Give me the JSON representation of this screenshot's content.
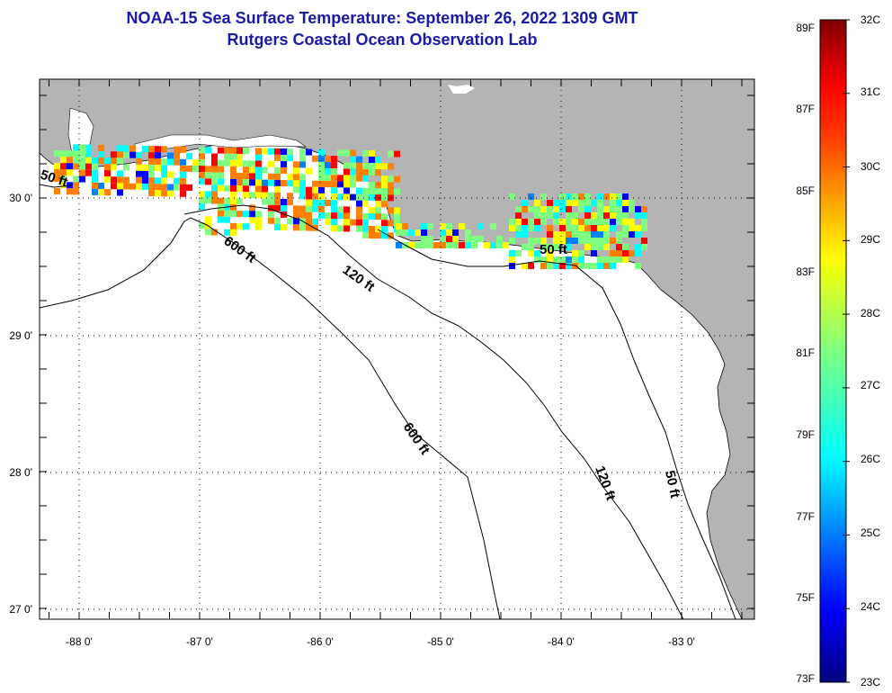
{
  "header": {
    "title_line1": "NOAA-15 Sea Surface Temperature:  September 26, 2022 1309 GMT",
    "title_line2": "Rutgers Coastal Ocean Observation Lab"
  },
  "map": {
    "lon_range": [
      -88.33,
      -82.42
    ],
    "lat_range": [
      26.96,
      30.86
    ],
    "lon_ticks": [
      {
        "value": -88,
        "label": "-88 0'"
      },
      {
        "value": -87,
        "label": "-87 0'"
      },
      {
        "value": -86,
        "label": "-86 0'"
      },
      {
        "value": -85,
        "label": "-85 0'"
      },
      {
        "value": -84,
        "label": "-84 0'"
      },
      {
        "value": -83,
        "label": "-83 0'"
      }
    ],
    "lat_ticks": [
      {
        "value": 30,
        "label": "30 0'"
      },
      {
        "value": 29,
        "label": "29 0'"
      },
      {
        "value": 28,
        "label": "28 0'"
      },
      {
        "value": 27,
        "label": "27 0'"
      }
    ],
    "contour_labels": [
      "50 ft",
      "600 ft",
      "120 ft",
      "50 ft",
      "600 ft",
      "120 ft",
      "50 ft"
    ],
    "colors": {
      "land": "#b4b4b4",
      "ocean": "#ffffff",
      "frame": "#000000",
      "grid": "#000000"
    }
  },
  "colorbar": {
    "fahrenheit": [
      "89F",
      "87F",
      "85F",
      "83F",
      "81F",
      "79F",
      "77F",
      "75F",
      "73F"
    ],
    "celsius": [
      "32C",
      "31C",
      "30C",
      "29C",
      "28C",
      "27C",
      "26C",
      "25C",
      "24C",
      "23C"
    ],
    "range_c": [
      23,
      32
    ],
    "palette": [
      "#00007f",
      "#0000ff",
      "#007fff",
      "#00ffff",
      "#7fff7f",
      "#ffff00",
      "#ff7f00",
      "#ff0000",
      "#7f0000"
    ]
  }
}
